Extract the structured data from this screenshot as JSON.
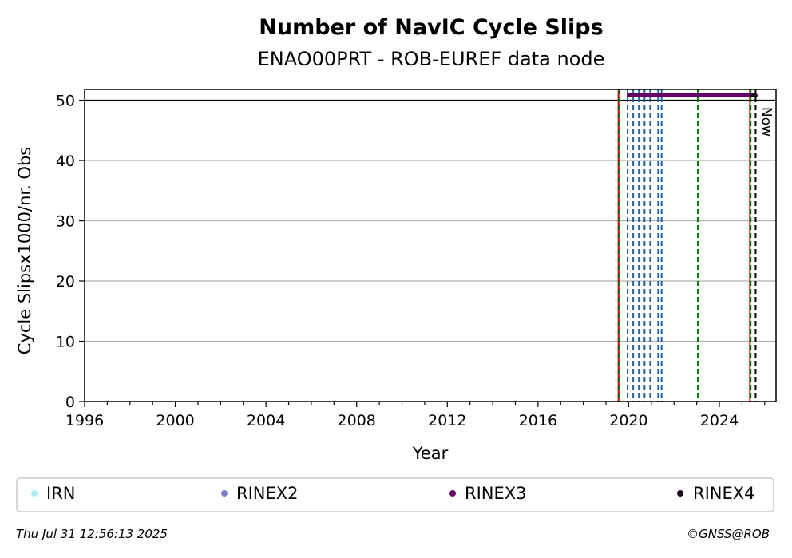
{
  "chart_data": {
    "type": "scatter",
    "title": "Number of NavIC Cycle Slips",
    "subtitle": "ENAO00PRT - ROB-EUREF data node",
    "xlabel": "Year",
    "ylabel": "Cycle Slipsx1000/nr. Obs",
    "xlim": [
      1996.0,
      2026.5
    ],
    "ylim": [
      0,
      51.8
    ],
    "x_ticks": [
      1996,
      2000,
      2004,
      2008,
      2012,
      2016,
      2020,
      2024
    ],
    "y_ticks": [
      0,
      10,
      20,
      30,
      40,
      50
    ],
    "grid": "horizontal",
    "reference_line_y": 50,
    "series": [
      {
        "name": "IRN",
        "color": "#aeeef0",
        "points": []
      },
      {
        "name": "RINEX2",
        "color": "#7f7fbf",
        "points": []
      },
      {
        "name": "RINEX3",
        "color": "#660066",
        "segments": [
          [
            2020.0,
            2025.4
          ]
        ],
        "y": 50.8
      },
      {
        "name": "RINEX4",
        "color": "#1a0a1a",
        "segments": [
          [
            2025.45,
            2025.6
          ]
        ],
        "y": 50.8
      }
    ],
    "vertical_lines": [
      {
        "x": 2019.55,
        "color": "#cc0000",
        "style": "solid"
      },
      {
        "x": 2019.58,
        "color": "#007700",
        "style": "dashed"
      },
      {
        "x": 2019.95,
        "color": "#1f5fa8",
        "style": "dashed"
      },
      {
        "x": 2020.2,
        "color": "#1f5fa8",
        "style": "dashed"
      },
      {
        "x": 2020.45,
        "color": "#1f5fa8",
        "style": "dashed"
      },
      {
        "x": 2020.7,
        "color": "#1f5fa8",
        "style": "dashed"
      },
      {
        "x": 2020.95,
        "color": "#1f5fa8",
        "style": "dashed"
      },
      {
        "x": 2021.3,
        "color": "#1f5fa8",
        "style": "dashed"
      },
      {
        "x": 2021.45,
        "color": "#1f5fa8",
        "style": "dashed"
      },
      {
        "x": 2023.05,
        "color": "#007700",
        "style": "dashed"
      },
      {
        "x": 2025.35,
        "color": "#cc0000",
        "style": "solid"
      },
      {
        "x": 2025.38,
        "color": "#007700",
        "style": "dashed"
      },
      {
        "x": 2025.6,
        "color": "#000000",
        "style": "dashed"
      }
    ],
    "now_label": "Now",
    "legend": {
      "placement": "bottom",
      "items": [
        {
          "label": "IRN",
          "color": "#aeeef0"
        },
        {
          "label": "RINEX2",
          "color": "#7f7fbf"
        },
        {
          "label": "RINEX3",
          "color": "#660066"
        },
        {
          "label": "RINEX4",
          "color": "#1a0a1a"
        }
      ]
    }
  },
  "footer": {
    "timestamp": "Thu Jul 31 12:56:13 2025",
    "credit": "©GNSS@ROB"
  }
}
